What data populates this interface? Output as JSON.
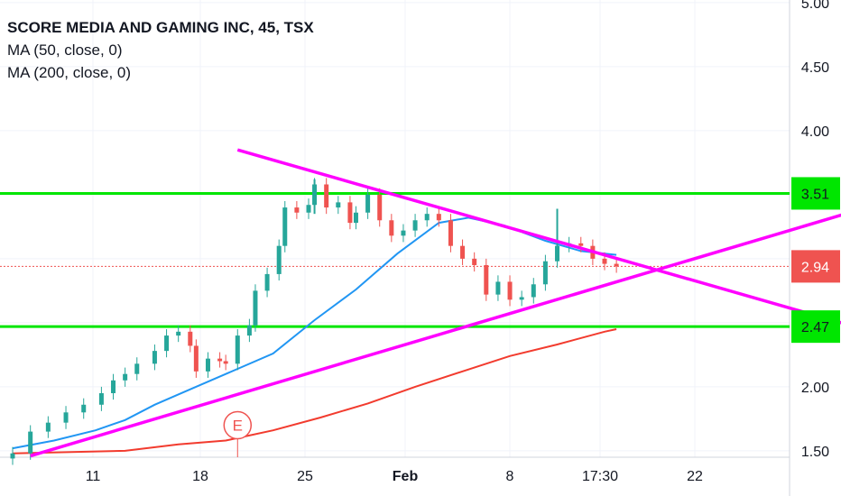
{
  "chart_data": {
    "type": "line",
    "title": "SCORE MEDIA AND GAMING INC, 45, TSX",
    "indicators": [
      "MA (50, close, 0)",
      "MA (200, close, 0)"
    ],
    "y_ticks": [
      1.5,
      2.0,
      2.5,
      3.0,
      3.5,
      4.0,
      4.5,
      5.0
    ],
    "y_tick_labels": [
      "1.50",
      "2.00",
      "2.50",
      "3.00",
      "3.50",
      "4.00",
      "4.50",
      "5.00"
    ],
    "x_ticks": [
      "11",
      "18",
      "25",
      "Feb",
      "8",
      "17:30",
      "22"
    ],
    "ylim": [
      1.45,
      5.02
    ],
    "grid": true,
    "price_series": [
      {
        "x": 0.0,
        "y": 1.48
      },
      {
        "x": 0.6,
        "y": 1.65
      },
      {
        "x": 1.2,
        "y": 1.72
      },
      {
        "x": 1.8,
        "y": 1.8
      },
      {
        "x": 2.4,
        "y": 1.86
      },
      {
        "x": 3.0,
        "y": 1.95
      },
      {
        "x": 3.4,
        "y": 2.05
      },
      {
        "x": 3.8,
        "y": 2.1
      },
      {
        "x": 4.2,
        "y": 2.18
      },
      {
        "x": 4.8,
        "y": 2.28
      },
      {
        "x": 5.2,
        "y": 2.4
      },
      {
        "x": 5.6,
        "y": 2.43
      },
      {
        "x": 6.0,
        "y": 2.32
      },
      {
        "x": 6.2,
        "y": 2.12
      },
      {
        "x": 6.6,
        "y": 2.22
      },
      {
        "x": 7.0,
        "y": 2.2
      },
      {
        "x": 7.2,
        "y": 2.18
      },
      {
        "x": 7.6,
        "y": 2.4
      },
      {
        "x": 8.0,
        "y": 2.48
      },
      {
        "x": 8.2,
        "y": 2.75
      },
      {
        "x": 8.6,
        "y": 2.88
      },
      {
        "x": 9.0,
        "y": 3.1
      },
      {
        "x": 9.2,
        "y": 3.4
      },
      {
        "x": 9.6,
        "y": 3.36
      },
      {
        "x": 10.0,
        "y": 3.42
      },
      {
        "x": 10.2,
        "y": 3.58
      },
      {
        "x": 10.6,
        "y": 3.4
      },
      {
        "x": 11.0,
        "y": 3.44
      },
      {
        "x": 11.4,
        "y": 3.28
      },
      {
        "x": 11.6,
        "y": 3.36
      },
      {
        "x": 12.0,
        "y": 3.5
      },
      {
        "x": 12.4,
        "y": 3.3
      },
      {
        "x": 12.8,
        "y": 3.18
      },
      {
        "x": 13.2,
        "y": 3.22
      },
      {
        "x": 13.6,
        "y": 3.3
      },
      {
        "x": 14.0,
        "y": 3.35
      },
      {
        "x": 14.4,
        "y": 3.3
      },
      {
        "x": 14.8,
        "y": 3.1
      },
      {
        "x": 15.2,
        "y": 3.0
      },
      {
        "x": 15.6,
        "y": 2.95
      },
      {
        "x": 16.0,
        "y": 2.72
      },
      {
        "x": 16.4,
        "y": 2.82
      },
      {
        "x": 16.8,
        "y": 2.68
      },
      {
        "x": 17.2,
        "y": 2.7
      },
      {
        "x": 17.6,
        "y": 2.8
      },
      {
        "x": 18.0,
        "y": 2.98
      },
      {
        "x": 18.4,
        "y": 3.1
      },
      {
        "x": 18.8,
        "y": 3.12
      },
      {
        "x": 19.2,
        "y": 3.1
      },
      {
        "x": 19.6,
        "y": 3.0
      },
      {
        "x": 20.0,
        "y": 2.96
      },
      {
        "x": 20.4,
        "y": 2.94
      }
    ],
    "price_spikes": [
      {
        "x": 10.2,
        "low": 3.35,
        "high": 3.62
      },
      {
        "x": 18.4,
        "low": 3.0,
        "high": 3.39
      }
    ],
    "ma50": [
      {
        "x": 0.0,
        "y": 1.52
      },
      {
        "x": 1.4,
        "y": 1.58
      },
      {
        "x": 2.8,
        "y": 1.66
      },
      {
        "x": 3.8,
        "y": 1.74
      },
      {
        "x": 4.8,
        "y": 1.86
      },
      {
        "x": 5.8,
        "y": 1.96
      },
      {
        "x": 7.2,
        "y": 2.1
      },
      {
        "x": 8.8,
        "y": 2.26
      },
      {
        "x": 10.2,
        "y": 2.52
      },
      {
        "x": 11.6,
        "y": 2.76
      },
      {
        "x": 13.0,
        "y": 3.04
      },
      {
        "x": 14.4,
        "y": 3.28
      },
      {
        "x": 15.4,
        "y": 3.32
      },
      {
        "x": 16.6,
        "y": 3.26
      },
      {
        "x": 18.0,
        "y": 3.14
      },
      {
        "x": 19.2,
        "y": 3.06
      },
      {
        "x": 20.4,
        "y": 3.03
      }
    ],
    "ma200": [
      {
        "x": 0.0,
        "y": 1.48
      },
      {
        "x": 3.8,
        "y": 1.5
      },
      {
        "x": 5.6,
        "y": 1.55
      },
      {
        "x": 7.2,
        "y": 1.58
      },
      {
        "x": 8.8,
        "y": 1.66
      },
      {
        "x": 10.4,
        "y": 1.76
      },
      {
        "x": 12.0,
        "y": 1.87
      },
      {
        "x": 13.6,
        "y": 2.0
      },
      {
        "x": 15.2,
        "y": 2.12
      },
      {
        "x": 16.8,
        "y": 2.24
      },
      {
        "x": 18.4,
        "y": 2.33
      },
      {
        "x": 20.0,
        "y": 2.43
      },
      {
        "x": 20.4,
        "y": 2.45
      }
    ],
    "horizontal_levels": [
      {
        "value": 3.51,
        "label": "3.51",
        "color": "#00e600",
        "label_bg": "#00e600"
      },
      {
        "value": 2.47,
        "label": "2.47",
        "color": "#00e600",
        "label_bg": "#00e600"
      }
    ],
    "last_price": {
      "value": 2.94,
      "label": "2.94",
      "color": "#ef5350"
    },
    "trendlines": [
      {
        "from": {
          "x": 7.6,
          "y": 3.85
        },
        "to": {
          "x": 29.2,
          "y": 2.42
        },
        "color": "#ff00ff"
      },
      {
        "from": {
          "x": 0.6,
          "y": 1.46
        },
        "to": {
          "x": 34.4,
          "y": 3.78
        },
        "color": "#ff00ff"
      }
    ],
    "event_marker": {
      "x": 7.6,
      "y": 1.7,
      "label": "E",
      "color": "#ef5350"
    },
    "colors": {
      "up_candle": "#26a69a",
      "down_candle": "#ef5350",
      "ma50": "#2196f3",
      "ma200": "#f23b2e",
      "axis_text": "#131722",
      "grid": "#f0f3fa"
    }
  }
}
